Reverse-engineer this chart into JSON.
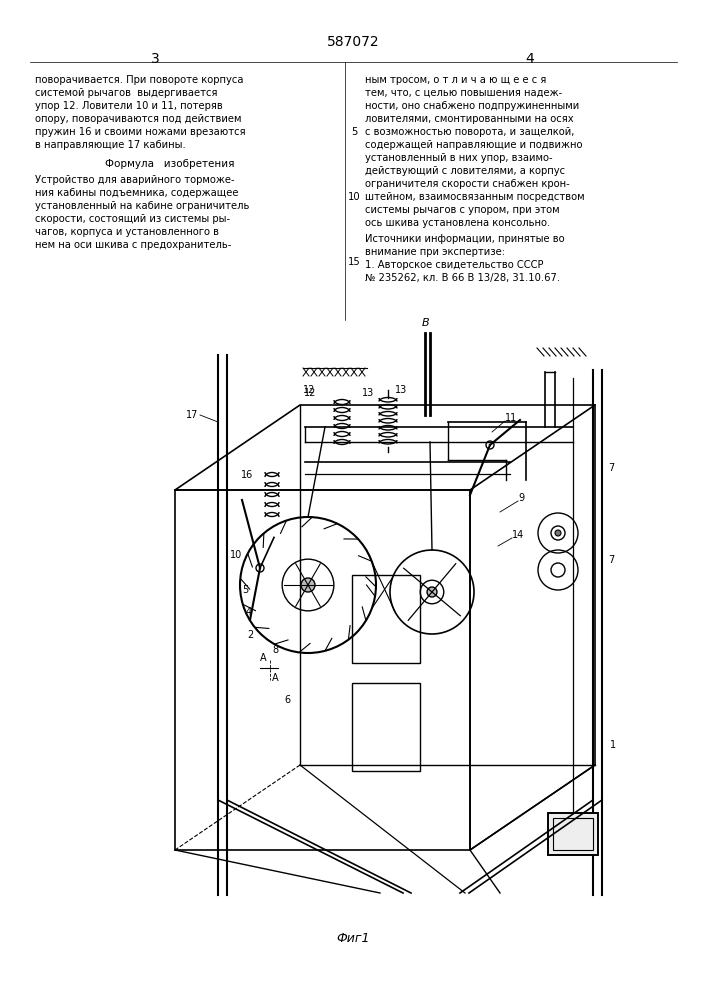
{
  "title": "587072",
  "page_left": "3",
  "page_right": "4",
  "fig_label": "Фиг1",
  "background": "#ffffff",
  "line_color": "#000000",
  "text_color": "#000000",
  "text_left_col": [
    "поворачивается. При повороте корпуса",
    "системой рычагов  выдергивается",
    "упор 12. Ловители 10 и 11, потеряв",
    "опору, поворачиваются под действием",
    "пружин 16 и своими ножами врезаются",
    "в направляющие 17 кабины."
  ],
  "formula_header": "Формула   изобретения",
  "formula_text": [
    "Устройство для аварийного торможе-",
    "ния кабины подъемника, содержащее",
    "установленный на кабине ограничитель",
    "скорости, состоящий из системы ры-",
    "чагов, корпуса и установленного в",
    "нем на оси шкива с предохранитель-"
  ],
  "text_right_col": [
    "ным тросом, о т л и ч а ю щ е е с я",
    "тем, что, с целью повышения надеж-",
    "ности, оно снабжено подпружиненными",
    "ловителями, смонтированными на осях",
    "с возможностью поворота, и защелкой,",
    "содержащей направляющие и подвижно",
    "установленный в них упор, взаимо-",
    "действующий с ловителями, а корпус",
    "ограничителя скорости снабжен крон-",
    "штейном, взаимосвязанным посредством",
    "системы рычагов с упором, при этом",
    "ось шкива установлена консольно."
  ],
  "sources_text": [
    "Источники информации, принятые во",
    "внимание при экспертизе:",
    "1. Авторское свидетельство СССР",
    "№ 235262, кл. В 66 В 13/28, 31.10.67."
  ],
  "fig_width": 7.07,
  "fig_height": 10.0
}
